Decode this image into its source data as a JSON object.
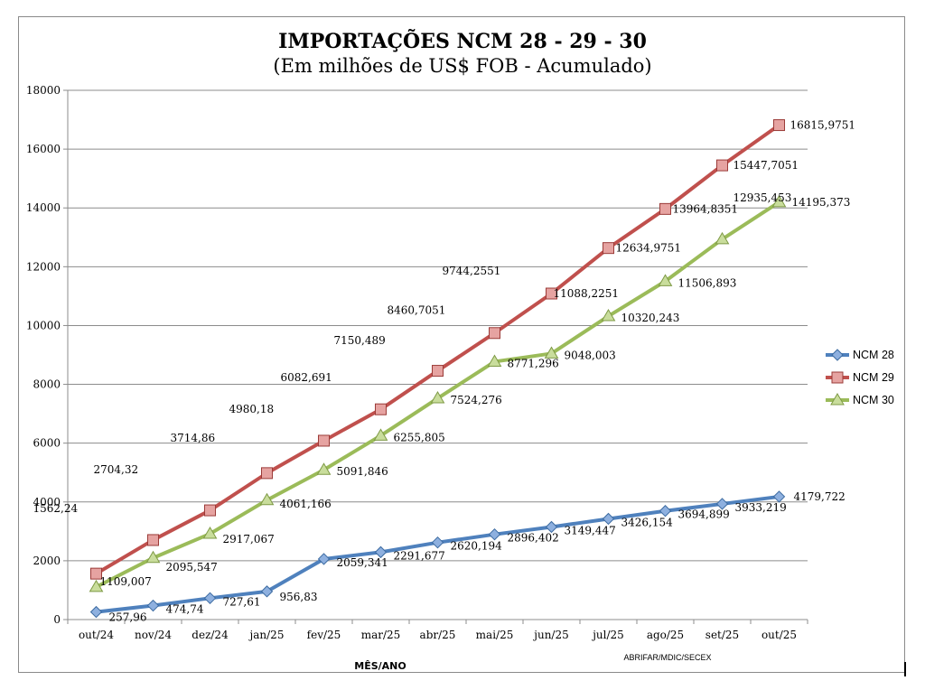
{
  "chart_data": {
    "type": "line",
    "title": "IMPORTAÇÕES NCM 28 - 29 - 30",
    "subtitle": "(Em milhões de US$ FOB - Acumulado)",
    "xlabel": "MÊS/ANO",
    "ylabel": "",
    "source": "ABRIFAR/MDIC/SECEX",
    "categories": [
      "out/24",
      "nov/24",
      "dez/24",
      "jan/25",
      "fev/25",
      "mar/25",
      "abr/25",
      "mai/25",
      "jun/25",
      "jul/25",
      "ago/25",
      "set/25",
      "out/25"
    ],
    "ylim": [
      0,
      18000
    ],
    "yticks": [
      "0",
      "2000",
      "4000",
      "6000",
      "8000",
      "10000",
      "12000",
      "14000",
      "16000",
      "18000"
    ],
    "grid": true,
    "legend_position": "right",
    "series": [
      {
        "name": "NCM 28",
        "color": "#4F81BD",
        "marker": "diamond",
        "values": [
          257.96,
          474.74,
          727.61,
          956.83,
          2059.341,
          2291.677,
          2620.194,
          2896.402,
          3149.447,
          3426.154,
          3694.899,
          3933.219,
          4179.722
        ],
        "labels": [
          "257,96",
          "474,74",
          "727,61",
          "956,83",
          "2059,341",
          "2291,677",
          "2620,194",
          "2896,402",
          "3149,447",
          "3426,154",
          "3694,899",
          "3933,219",
          "4179,722"
        ]
      },
      {
        "name": "NCM 29",
        "color": "#C0504D",
        "marker": "square",
        "values": [
          1562.24,
          2704.32,
          3714.86,
          4980.18,
          6082.691,
          7150.489,
          8460.7051,
          9744.2551,
          11088.2251,
          12634.9751,
          13964.8351,
          15447.7051,
          16815.9751
        ],
        "labels": [
          "1562,24",
          "2704,32",
          "3714,86",
          "4980,18",
          "6082,691",
          "7150,489",
          "8460,7051",
          "9744,2551",
          "11088,2251",
          "12634,9751",
          "13964,8351",
          "15447,7051",
          "16815,9751"
        ]
      },
      {
        "name": "NCM 30",
        "color": "#9BBB59",
        "marker": "triangle",
        "values": [
          1109.007,
          2095.547,
          2917.067,
          4061.166,
          5091.846,
          6255.805,
          7524.276,
          8771.296,
          9048.003,
          10320.243,
          11506.893,
          12935.453,
          14195.373
        ],
        "labels": [
          "1109,007",
          "2095,547",
          "2917,067",
          "4061,166",
          "5091,846",
          "6255,805",
          "7524,276",
          "8771,296",
          "9048,003",
          "10320,243",
          "11506,893",
          "12935,453",
          "14195,373"
        ]
      }
    ]
  }
}
